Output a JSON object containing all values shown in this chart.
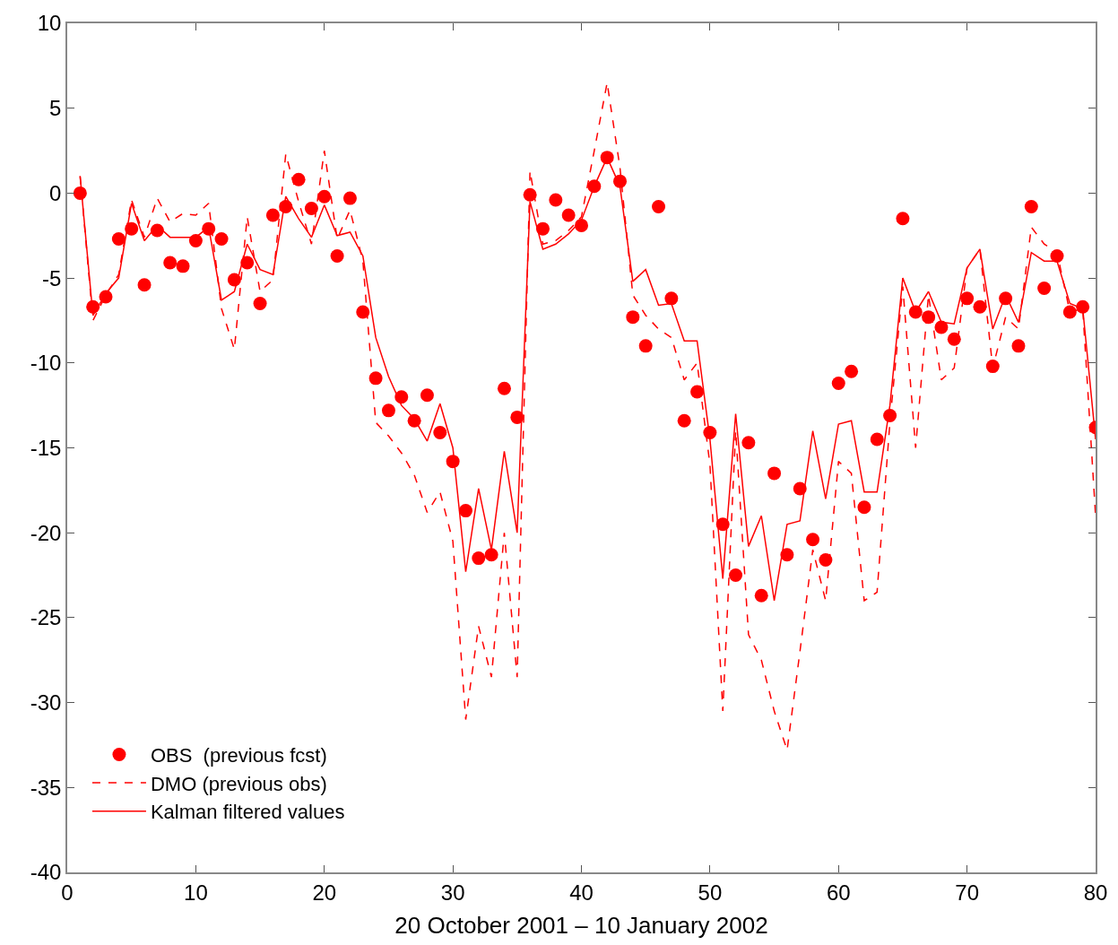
{
  "chart_data": {
    "type": "line",
    "xlabel": "20 October 2001 – 10 January 2002",
    "x": [
      1,
      2,
      3,
      4,
      5,
      6,
      7,
      8,
      9,
      10,
      11,
      12,
      13,
      14,
      15,
      16,
      17,
      18,
      19,
      20,
      21,
      22,
      23,
      24,
      25,
      26,
      27,
      28,
      29,
      30,
      31,
      32,
      33,
      34,
      35,
      36,
      37,
      38,
      39,
      40,
      41,
      42,
      43,
      44,
      45,
      46,
      47,
      48,
      49,
      50,
      51,
      52,
      53,
      54,
      55,
      56,
      57,
      58,
      59,
      60,
      61,
      62,
      63,
      64,
      65,
      66,
      67,
      68,
      69,
      70,
      71,
      72,
      73,
      74,
      75,
      76,
      77,
      78,
      79,
      80
    ],
    "series": [
      {
        "name": "OBS  (previous fcst)",
        "type": "scatter",
        "marker": "circle",
        "color": "#ff0000",
        "values": [
          0,
          -6.7,
          -6.1,
          -2.7,
          -2.1,
          -5.4,
          -2.2,
          -4.1,
          -4.3,
          -2.8,
          -2.1,
          -2.7,
          -5.1,
          -4.1,
          -6.5,
          -1.3,
          -0.8,
          0.8,
          -0.9,
          -0.2,
          -3.7,
          -0.3,
          -7.0,
          -10.9,
          -12.8,
          -12.0,
          -13.4,
          -11.9,
          -14.1,
          -15.8,
          -18.7,
          -21.5,
          -21.3,
          -11.5,
          -13.2,
          -0.1,
          -2.1,
          -0.4,
          -1.3,
          -1.9,
          0.4,
          2.1,
          0.7,
          -7.3,
          -9.0,
          -0.8,
          -6.2,
          -13.4,
          -11.7,
          -14.1,
          -19.5,
          -22.5,
          -14.7,
          -23.7,
          -16.5,
          -21.3,
          -17.4,
          -20.4,
          -21.6,
          -11.2,
          -10.5,
          -18.5,
          -14.5,
          -13.1,
          -1.5,
          -7.0,
          -7.3,
          -7.9,
          -8.6,
          -6.2,
          -6.7,
          -10.2,
          -6.2,
          -9.0,
          -0.8,
          -5.6,
          -3.7,
          -7.0,
          -6.7,
          -13.8
        ]
      },
      {
        "name": "DMO (previous obs)",
        "line_style": "dashed",
        "color": "#ff0000",
        "values": [
          1.0,
          -7.5,
          -6.0,
          -4.8,
          -0.4,
          -2.6,
          -0.3,
          -1.7,
          -1.2,
          -1.3,
          -0.6,
          -6.8,
          -9.2,
          -1.4,
          -5.8,
          -5.1,
          2.3,
          -0.5,
          -3.0,
          2.5,
          -2.7,
          -1.0,
          -4.0,
          -13.5,
          -14.3,
          -15.3,
          -16.6,
          -18.8,
          -17.6,
          -20.5,
          -31.0,
          -25.5,
          -28.5,
          -20.0,
          -28.5,
          1.3,
          -3.0,
          -2.8,
          -2.2,
          -1.4,
          2.5,
          6.5,
          1.5,
          -6.0,
          -7.2,
          -8.0,
          -8.5,
          -11.0,
          -10.0,
          -16.0,
          -30.5,
          -14.0,
          -26.0,
          -27.5,
          -30.5,
          -32.8,
          -27.0,
          -21.0,
          -24.0,
          -15.8,
          -16.5,
          -24.0,
          -23.5,
          -13.5,
          -5.5,
          -15.0,
          -6.0,
          -11.0,
          -10.3,
          -4.4,
          -3.3,
          -10.3,
          -7.3,
          -8.0,
          -2.0,
          -3.0,
          -3.5,
          -7.0,
          -6.8,
          -19.0
        ]
      },
      {
        "name": "Kalman filtered values",
        "line_style": "solid",
        "color": "#ff0000",
        "values": [
          1.0,
          -7.2,
          -5.9,
          -5.0,
          -0.6,
          -2.8,
          -1.9,
          -2.6,
          -2.6,
          -2.6,
          -2.0,
          -6.3,
          -5.8,
          -3.0,
          -4.5,
          -4.8,
          -0.2,
          -1.5,
          -2.6,
          -0.7,
          -2.5,
          -2.3,
          -3.7,
          -8.5,
          -10.8,
          -12.5,
          -13.3,
          -14.6,
          -12.4,
          -15.0,
          -22.3,
          -17.4,
          -21.0,
          -15.2,
          -20.0,
          -0.5,
          -3.3,
          -3.0,
          -2.4,
          -1.6,
          0.4,
          2.1,
          0.4,
          -5.2,
          -4.5,
          -6.6,
          -6.5,
          -8.7,
          -8.7,
          -14.5,
          -22.7,
          -13.0,
          -20.8,
          -19.0,
          -24.0,
          -19.5,
          -19.3,
          -14.0,
          -18.0,
          -13.6,
          -13.4,
          -17.6,
          -17.6,
          -12.5,
          -5.0,
          -7.0,
          -5.8,
          -7.6,
          -7.7,
          -4.4,
          -3.3,
          -8.0,
          -6.0,
          -7.6,
          -3.5,
          -4.0,
          -4.0,
          -6.5,
          -6.8,
          -14.5
        ]
      }
    ],
    "xlim": [
      0,
      80
    ],
    "xticks": [
      0,
      10,
      20,
      30,
      40,
      50,
      60,
      70,
      80
    ],
    "ylim": [
      -40,
      10
    ],
    "yticks": [
      -40,
      -35,
      -30,
      -25,
      -20,
      -15,
      -10,
      -5,
      0,
      5,
      10
    ],
    "legend": "bottom left"
  }
}
